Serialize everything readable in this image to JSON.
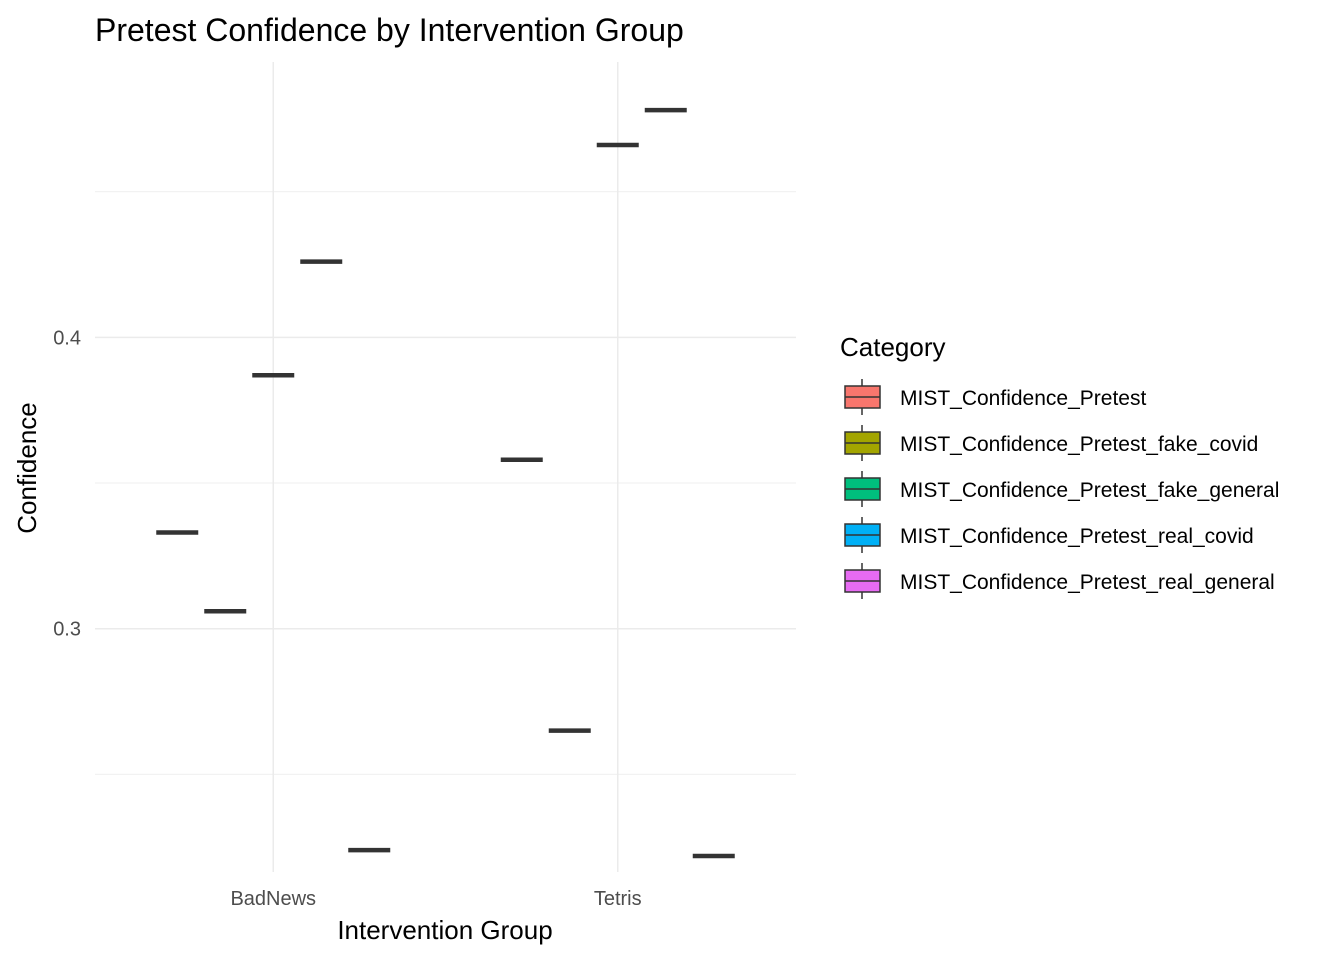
{
  "chart_data": {
    "type": "boxplot",
    "title": "Pretest Confidence by Intervention Group",
    "xlabel": "Intervention Group",
    "ylabel": "Confidence",
    "categories": [
      "BadNews",
      "Tetris"
    ],
    "ylim": [
      0.2165,
      0.4945
    ],
    "yticks": [
      0.3,
      0.4
    ],
    "ytick_labels": [
      "0.3",
      "0.4"
    ],
    "grid": true,
    "legend": {
      "title": "Category",
      "position": "right"
    },
    "series": [
      {
        "name": "MIST_Confidence_Pretest",
        "color": "#F8766D",
        "values": [
          0.333,
          0.358
        ]
      },
      {
        "name": "MIST_Confidence_Pretest_fake_covid",
        "color": "#A3A500",
        "values": [
          0.306,
          0.265
        ]
      },
      {
        "name": "MIST_Confidence_Pretest_fake_general",
        "color": "#00BF7D",
        "values": [
          0.387,
          0.466
        ]
      },
      {
        "name": "MIST_Confidence_Pretest_real_covid",
        "color": "#00B0F6",
        "values": [
          0.426,
          0.478
        ]
      },
      {
        "name": "MIST_Confidence_Pretest_real_general",
        "color": "#E76BF3",
        "values": [
          0.224,
          0.222
        ]
      }
    ]
  }
}
